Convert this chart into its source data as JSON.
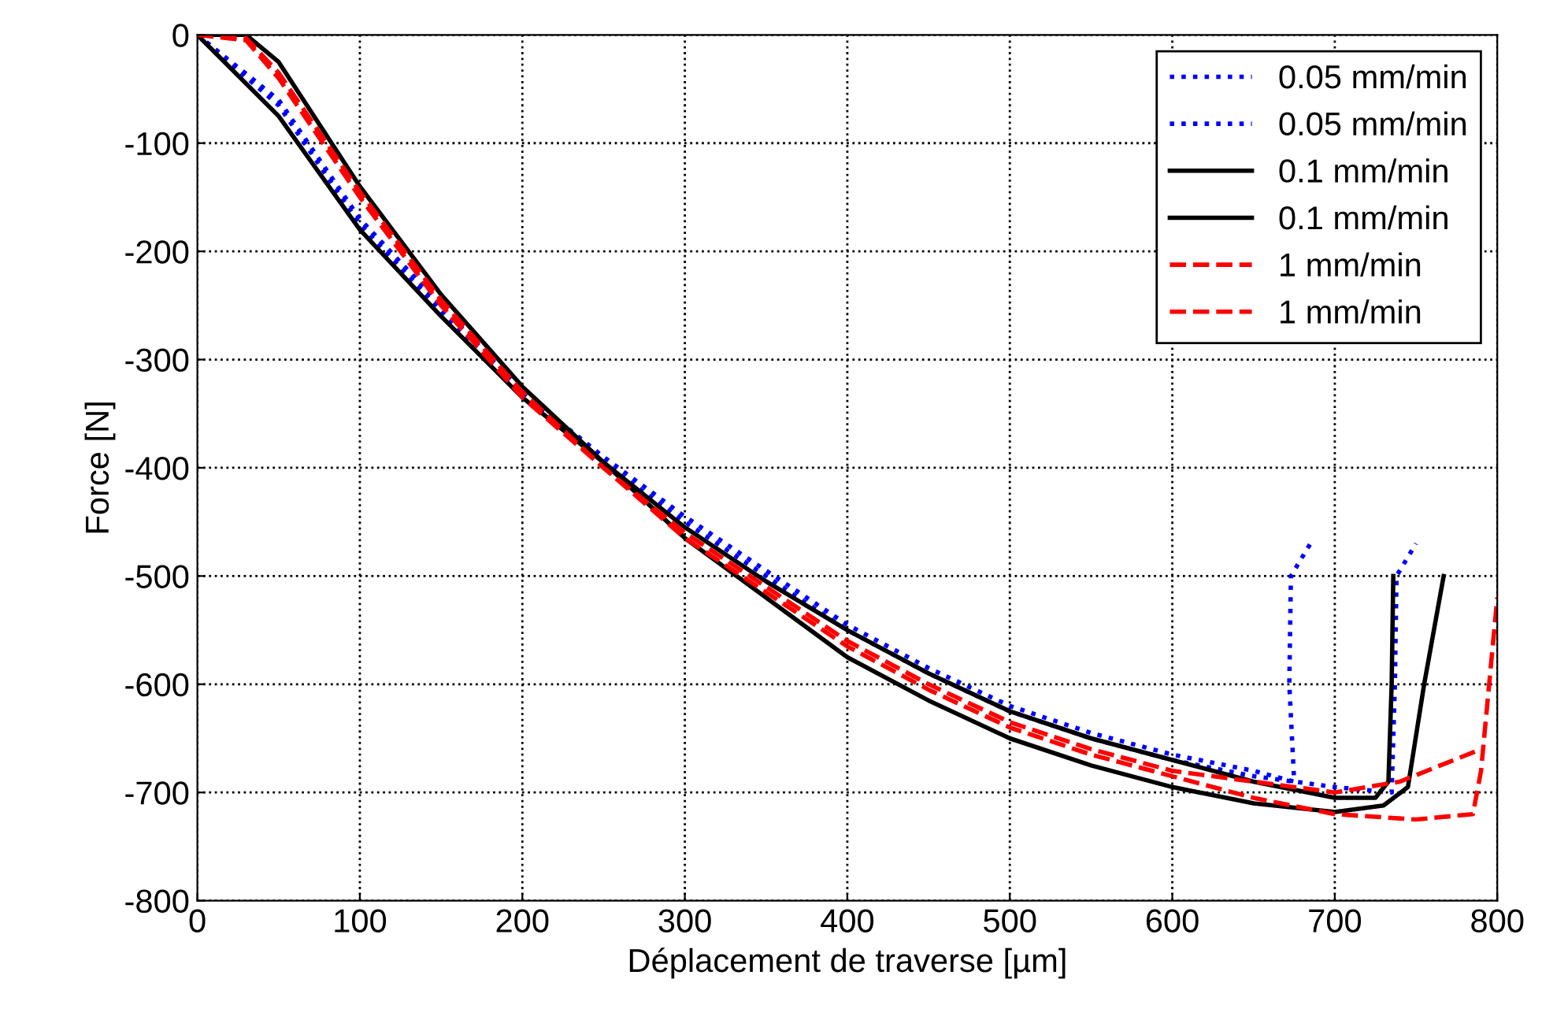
{
  "chart_data": {
    "type": "line",
    "xlabel": "Déplacement de traverse [µm]",
    "ylabel": "Force [N]",
    "xlim": [
      0,
      800
    ],
    "ylim": [
      -800,
      0
    ],
    "xticks": [
      0,
      100,
      200,
      300,
      400,
      500,
      600,
      700,
      800
    ],
    "yticks": [
      -800,
      -700,
      -600,
      -500,
      -400,
      -300,
      -200,
      -100,
      0
    ],
    "grid": true,
    "legend": "top right",
    "series": [
      {
        "name": "0.05 mm/min",
        "color": "#0000ff",
        "line_style": "dotted",
        "x": [
          0,
          50,
          100,
          150,
          200,
          250,
          300,
          350,
          400,
          450,
          500,
          550,
          600,
          650,
          675,
          672,
          673,
          685
        ],
        "values": [
          0,
          -60,
          -170,
          -250,
          -330,
          -390,
          -445,
          -495,
          -545,
          -585,
          -620,
          -645,
          -665,
          -680,
          -690,
          -600,
          -500,
          -470
        ]
      },
      {
        "name": "0.05 mm/min",
        "color": "#0000ff",
        "line_style": "dotted",
        "x": [
          0,
          50,
          100,
          150,
          200,
          250,
          300,
          350,
          400,
          450,
          500,
          550,
          600,
          650,
          700,
          735,
          737,
          738,
          750
        ],
        "values": [
          0,
          -65,
          -175,
          -255,
          -335,
          -395,
          -450,
          -500,
          -550,
          -590,
          -625,
          -650,
          -670,
          -685,
          -695,
          -700,
          -600,
          -500,
          -470
        ]
      },
      {
        "name": "0.1 mm/min",
        "color": "#000000",
        "line_style": "solid",
        "x": [
          0,
          50,
          100,
          150,
          200,
          250,
          300,
          350,
          400,
          450,
          500,
          550,
          600,
          650,
          700,
          725,
          733,
          735,
          736
        ],
        "values": [
          0,
          -75,
          -180,
          -260,
          -335,
          -395,
          -455,
          -505,
          -550,
          -590,
          -625,
          -650,
          -670,
          -690,
          -705,
          -705,
          -690,
          -600,
          -500
        ]
      },
      {
        "name": "0.1 mm/min",
        "color": "#000000",
        "line_style": "solid",
        "x": [
          0,
          30,
          50,
          100,
          150,
          200,
          250,
          300,
          350,
          400,
          450,
          500,
          550,
          600,
          650,
          700,
          730,
          745,
          755,
          767
        ],
        "values": [
          0,
          0,
          -25,
          -140,
          -240,
          -325,
          -395,
          -465,
          -520,
          -575,
          -615,
          -650,
          -675,
          -695,
          -710,
          -718,
          -712,
          -695,
          -600,
          -500
        ]
      },
      {
        "name": "1 mm/min",
        "color": "#ff0000",
        "line_style": "dashed",
        "x": [
          0,
          30,
          50,
          100,
          150,
          200,
          250,
          300,
          350,
          400,
          450,
          500,
          550,
          600,
          650,
          700,
          740,
          790
        ],
        "values": [
          0,
          -5,
          -40,
          -150,
          -250,
          -335,
          -400,
          -460,
          -510,
          -560,
          -600,
          -635,
          -660,
          -680,
          -690,
          -700,
          -690,
          -660
        ]
      },
      {
        "name": "1 mm/min",
        "color": "#ff0000",
        "line_style": "dashed",
        "x": [
          0,
          30,
          50,
          100,
          150,
          200,
          250,
          300,
          350,
          400,
          450,
          500,
          550,
          600,
          650,
          700,
          750,
          785,
          790,
          795,
          800
        ],
        "values": [
          0,
          -3,
          -35,
          -145,
          -245,
          -330,
          -400,
          -465,
          -515,
          -565,
          -605,
          -640,
          -665,
          -685,
          -705,
          -720,
          -725,
          -720,
          -680,
          -600,
          -520
        ]
      }
    ]
  }
}
